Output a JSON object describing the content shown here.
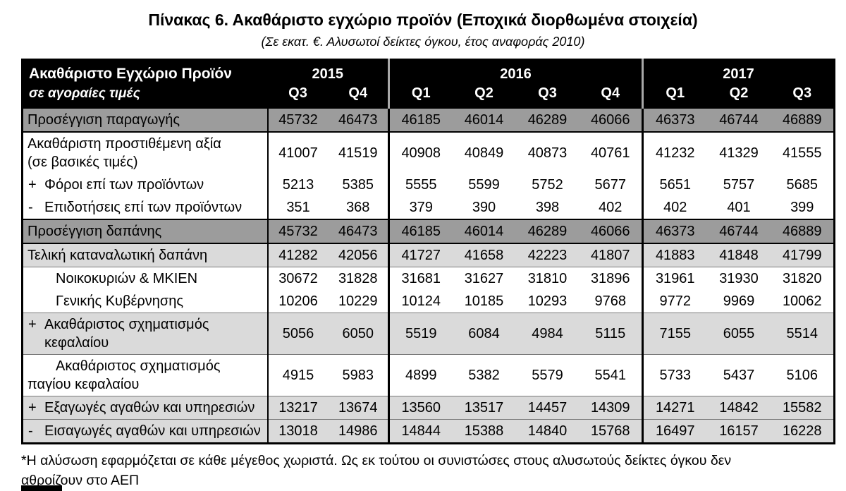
{
  "title": "Πίνακας 6. Ακαθάριστο εγχώριο προϊόν (Εποχικά διορθωμένα στοιχεία)",
  "subtitle": "(Σε εκατ. €. Αλυσωτοί δείκτες όγκου, έτος αναφοράς 2010)",
  "table": {
    "header": {
      "col1_line1": "Ακαθάριστο Εγχώριο Προϊόν",
      "col1_line2": "σε αγοραίες τιμές",
      "year_groups": [
        {
          "year": "2015",
          "quarters": [
            "Q3",
            "Q4"
          ]
        },
        {
          "year": "2016",
          "quarters": [
            "Q1",
            "Q2",
            "Q3",
            "Q4"
          ]
        },
        {
          "year": "2017",
          "quarters": [
            "Q1",
            "Q2",
            "Q3"
          ]
        }
      ]
    },
    "rows": [
      {
        "sign": "",
        "style": "dark",
        "indent": "",
        "label": "Προσέγγιση παραγωγής",
        "values": [
          45732,
          46473,
          46185,
          46014,
          46289,
          46066,
          46373,
          46744,
          46889
        ]
      },
      {
        "sign": "",
        "style": "white",
        "indent": "",
        "label": "Ακαθάριστη προστιθέμενη αξία\n(σε βασικές τιμές)",
        "values": [
          41007,
          41519,
          40908,
          40849,
          40873,
          40761,
          41232,
          41329,
          41555
        ]
      },
      {
        "sign": "+",
        "style": "white",
        "indent": "",
        "label": "Φόροι επί των προϊόντων",
        "values": [
          5213,
          5385,
          5555,
          5599,
          5752,
          5677,
          5651,
          5757,
          5685
        ]
      },
      {
        "sign": "-",
        "style": "white",
        "indent": "",
        "label": "Επιδοτήσεις επί των προϊόντων",
        "values": [
          351,
          368,
          379,
          390,
          398,
          402,
          402,
          401,
          399
        ]
      },
      {
        "sign": "",
        "style": "dark",
        "indent": "",
        "label": "Προσέγγιση δαπάνης",
        "values": [
          45732,
          46473,
          46185,
          46014,
          46289,
          46066,
          46373,
          46744,
          46889
        ]
      },
      {
        "sign": "",
        "style": "light",
        "indent": "",
        "label": "Τελική καταναλωτική δαπάνη",
        "values": [
          41282,
          42056,
          41727,
          41658,
          42223,
          41807,
          41883,
          41848,
          41799
        ]
      },
      {
        "sign": "",
        "style": "white",
        "indent": "1",
        "label": "Νοικοκυριών & ΜΚΙΕΝ",
        "values": [
          30672,
          31828,
          31681,
          31627,
          31810,
          31896,
          31961,
          31930,
          31820
        ]
      },
      {
        "sign": "",
        "style": "white",
        "indent": "1",
        "label": "Γενικής Κυβέρνησης",
        "values": [
          10206,
          10229,
          10124,
          10185,
          10293,
          9768,
          9772,
          9969,
          10062
        ]
      },
      {
        "sign": "+",
        "style": "light",
        "indent": "",
        "label": "Ακαθάριστος σχηματισμός\nκεφαλαίου",
        "values": [
          5056,
          6050,
          5519,
          6084,
          4984,
          5115,
          7155,
          6055,
          5514
        ]
      },
      {
        "sign": "",
        "style": "white",
        "indent": "hang",
        "label": "Ακαθάριστος σχηματισμός\nπαγίου κεφαλαίου",
        "values": [
          4915,
          5983,
          4899,
          5382,
          5579,
          5541,
          5733,
          5437,
          5106
        ]
      },
      {
        "sign": "+",
        "style": "light",
        "indent": "",
        "label": "Εξαγωγές αγαθών και υπηρεσιών",
        "values": [
          13217,
          13674,
          13560,
          13517,
          14457,
          14309,
          14271,
          14842,
          15582
        ]
      },
      {
        "sign": "-",
        "style": "light",
        "indent": "",
        "label": "Εισαγωγές αγαθών και υπηρεσιών",
        "values": [
          13018,
          14986,
          14844,
          15388,
          14840,
          15768,
          16497,
          16157,
          16228
        ]
      }
    ]
  },
  "footnote": "*Η αλύσωση εφαρμόζεται σε κάθε μέγεθος χωριστά. Ως εκ τούτου οι συνιστώσες στους αλυσωτούς δείκτες όγκου δεν αθροίζουν στο ΑΕΠ",
  "colors": {
    "header_bg": "#000000",
    "header_text": "#ffffff",
    "dark_row_bg": "#9c9c9c",
    "light_row_bg": "#dadada",
    "border": "#000000"
  }
}
